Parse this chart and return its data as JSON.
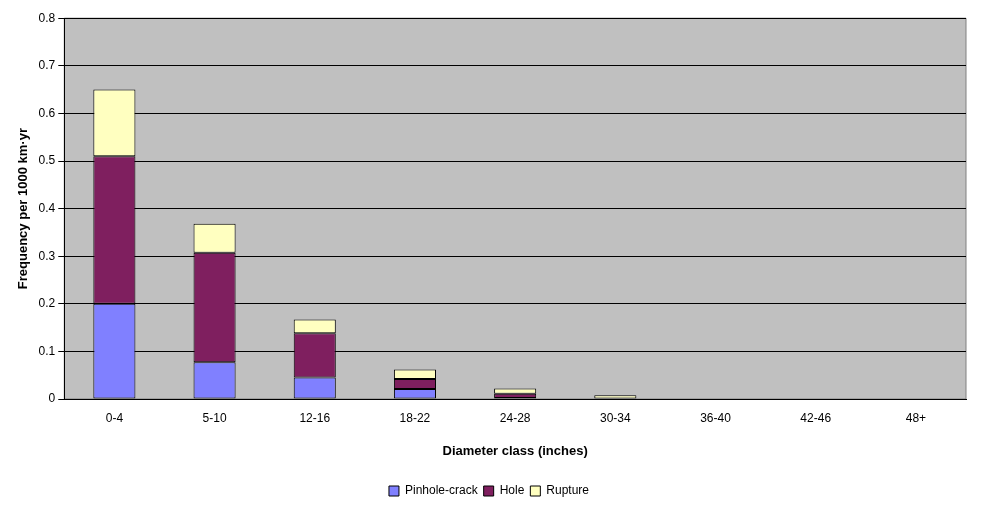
{
  "chart_data": {
    "type": "bar",
    "stacked": true,
    "xlabel": "Diameter class (inches)",
    "ylabel": "Frequency per 1000 km·yr",
    "categories": [
      "0-4",
      "5-10",
      "12-16",
      "18-22",
      "24-28",
      "30-34",
      "36-40",
      "42-46",
      "48+"
    ],
    "series": [
      {
        "name": "Pinhole-crack",
        "color": "#8080ff",
        "values": [
          0.2,
          0.077,
          0.045,
          0.021,
          0.002,
          0,
          0,
          0,
          0
        ]
      },
      {
        "name": "Hole",
        "color": "#7f1f5f",
        "values": [
          0.31,
          0.23,
          0.093,
          0.021,
          0.009,
          0.001,
          0,
          0,
          0
        ]
      },
      {
        "name": "Rupture",
        "color": "#ffffc0",
        "values": [
          0.14,
          0.061,
          0.029,
          0.02,
          0.011,
          0.007,
          0,
          0,
          0
        ]
      }
    ],
    "ylim": [
      0,
      0.8
    ],
    "yticks": [
      0,
      0.1,
      0.2,
      0.3,
      0.4,
      0.5,
      0.6,
      0.7,
      0.8
    ],
    "grid": "y",
    "legend": "bottom"
  }
}
